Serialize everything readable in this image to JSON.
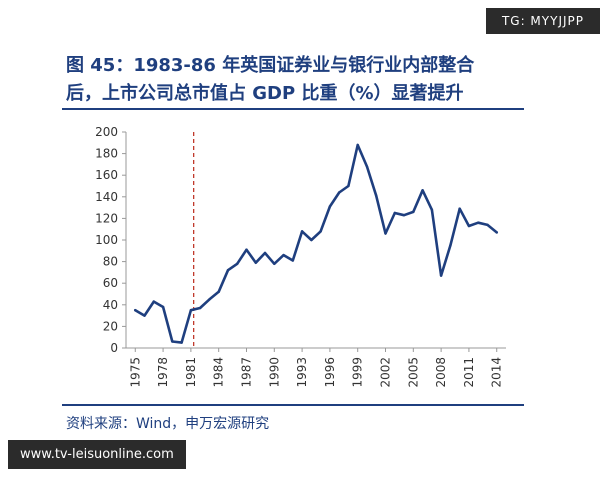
{
  "header": {
    "title_line1": "图 45：1983-86 年英国证券业与银行业内部整合",
    "title_line2": "后，上市公司总市值占 GDP 比重（%）显著提升"
  },
  "source": "资料来源：Wind，申万宏源研究",
  "watermarks": {
    "top_right": "TG: MYYJJPP",
    "bottom_left": "www.tv-leisuonline.com"
  },
  "colors": {
    "title": "#1f3f7f",
    "line": "#1f3f7f",
    "marker": "#c0392b"
  },
  "chart_data": {
    "type": "line",
    "title": "",
    "xlabel": "",
    "ylabel": "",
    "ylim": [
      0,
      200
    ],
    "yticks": [
      0,
      20,
      40,
      60,
      80,
      100,
      120,
      140,
      160,
      180,
      200
    ],
    "xlim": [
      1974,
      2015
    ],
    "xticks": [
      1975,
      1978,
      1981,
      1984,
      1987,
      1990,
      1993,
      1996,
      1999,
      2002,
      2005,
      2008,
      2011,
      2014
    ],
    "grid": false,
    "legend": "none",
    "marker_line": {
      "x": 1981.3,
      "style": "dashed"
    },
    "series": [
      {
        "x": [
          1975,
          1976,
          1977,
          1978,
          1979,
          1980,
          1981,
          1982,
          1983,
          1984,
          1985,
          1986,
          1987,
          1988,
          1989,
          1990,
          1991,
          1992,
          1993,
          1994,
          1995,
          1996,
          1997,
          1998,
          1999,
          2000,
          2001,
          2002,
          2003,
          2004,
          2005,
          2006,
          2007,
          2008,
          2009,
          2010,
          2011,
          2012,
          2013,
          2014
        ],
        "values": [
          35,
          30,
          43,
          38,
          6,
          5,
          35,
          37,
          45,
          52,
          72,
          78,
          91,
          79,
          88,
          78,
          86,
          81,
          108,
          100,
          108,
          131,
          144,
          150,
          188,
          168,
          141,
          106,
          125,
          123,
          126,
          146,
          128,
          67,
          95,
          129,
          113,
          116,
          114,
          107
        ]
      }
    ]
  }
}
